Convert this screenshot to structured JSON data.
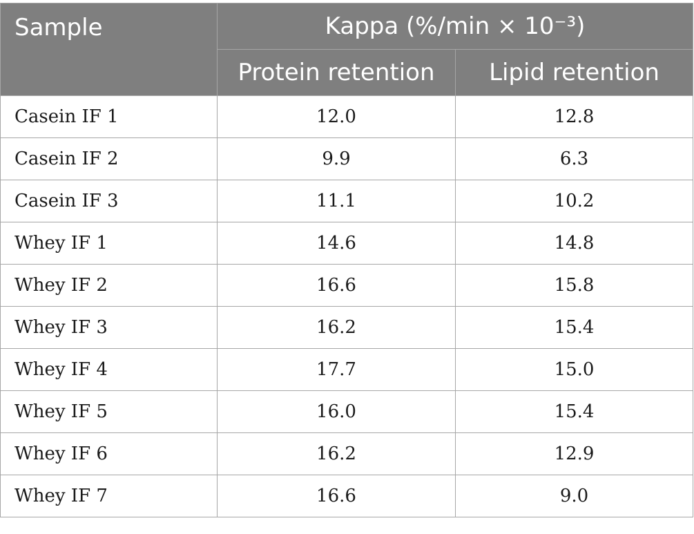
{
  "table": {
    "header": {
      "sample": "Sample",
      "group": "Kappa (%/min × 10⁻³)",
      "sub": [
        "Protein retention",
        "Lipid retention"
      ]
    },
    "rows": [
      {
        "sample": "Casein IF 1",
        "protein": "12.0",
        "lipid": "12.8"
      },
      {
        "sample": "Casein IF 2",
        "protein": "9.9",
        "lipid": "6.3"
      },
      {
        "sample": "Casein IF 3",
        "protein": "11.1",
        "lipid": "10.2"
      },
      {
        "sample": "Whey IF 1",
        "protein": "14.6",
        "lipid": "14.8"
      },
      {
        "sample": "Whey IF 2",
        "protein": "16.6",
        "lipid": "15.8"
      },
      {
        "sample": "Whey IF 3",
        "protein": "16.2",
        "lipid": "15.4"
      },
      {
        "sample": "Whey IF 4",
        "protein": "17.7",
        "lipid": "15.0"
      },
      {
        "sample": "Whey IF 5",
        "protein": "16.0",
        "lipid": "15.4"
      },
      {
        "sample": "Whey IF 6",
        "protein": "16.2",
        "lipid": "12.9"
      },
      {
        "sample": "Whey IF 7",
        "protein": "16.6",
        "lipid": "9.0"
      }
    ]
  },
  "colors": {
    "header_bg": "#7f7f7f",
    "header_text": "#ffffff",
    "border": "#a6a6a6"
  }
}
